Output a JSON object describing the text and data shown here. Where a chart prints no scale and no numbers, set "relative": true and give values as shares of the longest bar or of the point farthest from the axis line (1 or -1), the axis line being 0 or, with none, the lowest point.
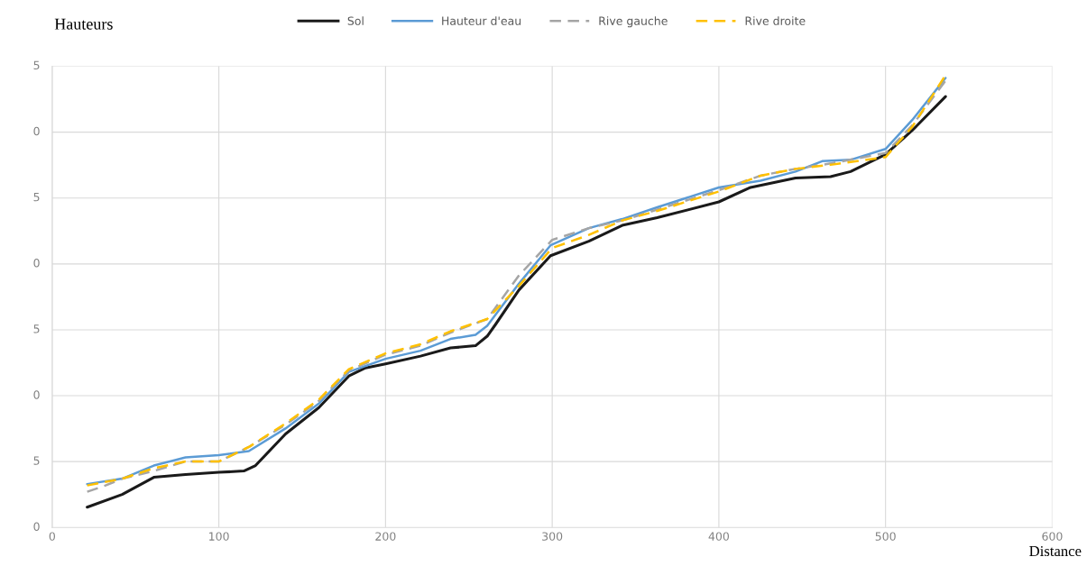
{
  "chart_data": {
    "type": "line",
    "relative": true,
    "xlabel": "Distance",
    "ylabel": "Hauteurs",
    "xlim": [
      0,
      600
    ],
    "xticks": [
      0,
      100,
      200,
      300,
      400,
      500,
      600
    ],
    "annotations": [
      "0",
      "5",
      "0",
      "5",
      "0",
      "5",
      "0",
      "5"
    ],
    "grid": true,
    "legend": "top",
    "marker": "none",
    "series": [
      {
        "name": "Sol",
        "color": "#1a1a1a",
        "line_style": "solid",
        "x": [
          21,
          42,
          61,
          80,
          100,
          115,
          122,
          140,
          160,
          178,
          188,
          200,
          221,
          239,
          254,
          261,
          266,
          280,
          299,
          322,
          342,
          363,
          400,
          419,
          446,
          467,
          479,
          500,
          516,
          536
        ],
        "values": [
          0.045,
          0.073,
          0.111,
          0.117,
          0.122,
          0.125,
          0.137,
          0.207,
          0.265,
          0.335,
          0.353,
          0.362,
          0.379,
          0.397,
          0.402,
          0.423,
          0.449,
          0.525,
          0.601,
          0.633,
          0.668,
          0.685,
          0.72,
          0.752,
          0.773,
          0.776,
          0.787,
          0.825,
          0.878,
          0.953
        ]
      },
      {
        "name": "Hauteur d'eau",
        "color": "#5b9bd5",
        "line_style": "solid",
        "x": [
          21,
          42,
          61,
          80,
          100,
          118,
          140,
          160,
          178,
          200,
          221,
          239,
          254,
          261,
          280,
          299,
          322,
          342,
          363,
          400,
          425,
          446,
          462,
          479,
          500,
          516,
          536
        ],
        "values": [
          0.096,
          0.108,
          0.137,
          0.155,
          0.16,
          0.169,
          0.219,
          0.274,
          0.344,
          0.373,
          0.391,
          0.417,
          0.426,
          0.446,
          0.539,
          0.624,
          0.662,
          0.682,
          0.708,
          0.752,
          0.767,
          0.787,
          0.81,
          0.813,
          0.837,
          0.901,
          0.994
        ]
      },
      {
        "name": "Rive gauche",
        "color": "#a5a5a5",
        "line_style": "dashed",
        "x": [
          21,
          32,
          42,
          61,
          80,
          100,
          118,
          140,
          160,
          178,
          200,
          221,
          239,
          261,
          280,
          300,
          322,
          342,
          363,
          400,
          425,
          446,
          467,
          500,
          516,
          536
        ],
        "values": [
          0.079,
          0.093,
          0.108,
          0.125,
          0.146,
          0.146,
          0.178,
          0.227,
          0.28,
          0.347,
          0.382,
          0.402,
          0.431,
          0.461,
          0.557,
          0.636,
          0.662,
          0.679,
          0.703,
          0.746,
          0.778,
          0.793,
          0.805,
          0.828,
          0.889,
          0.988
        ]
      },
      {
        "name": "Rive droite",
        "color": "#ffc000",
        "line_style": "dashed",
        "x": [
          21,
          42,
          61,
          80,
          100,
          118,
          140,
          160,
          178,
          200,
          221,
          239,
          261,
          280,
          300,
          322,
          342,
          363,
          400,
          425,
          446,
          467,
          500,
          516,
          536
        ],
        "values": [
          0.093,
          0.108,
          0.131,
          0.146,
          0.146,
          0.178,
          0.23,
          0.283,
          0.35,
          0.385,
          0.405,
          0.434,
          0.461,
          0.534,
          0.618,
          0.647,
          0.679,
          0.7,
          0.743,
          0.778,
          0.793,
          0.802,
          0.819,
          0.886,
          1
        ]
      }
    ]
  }
}
